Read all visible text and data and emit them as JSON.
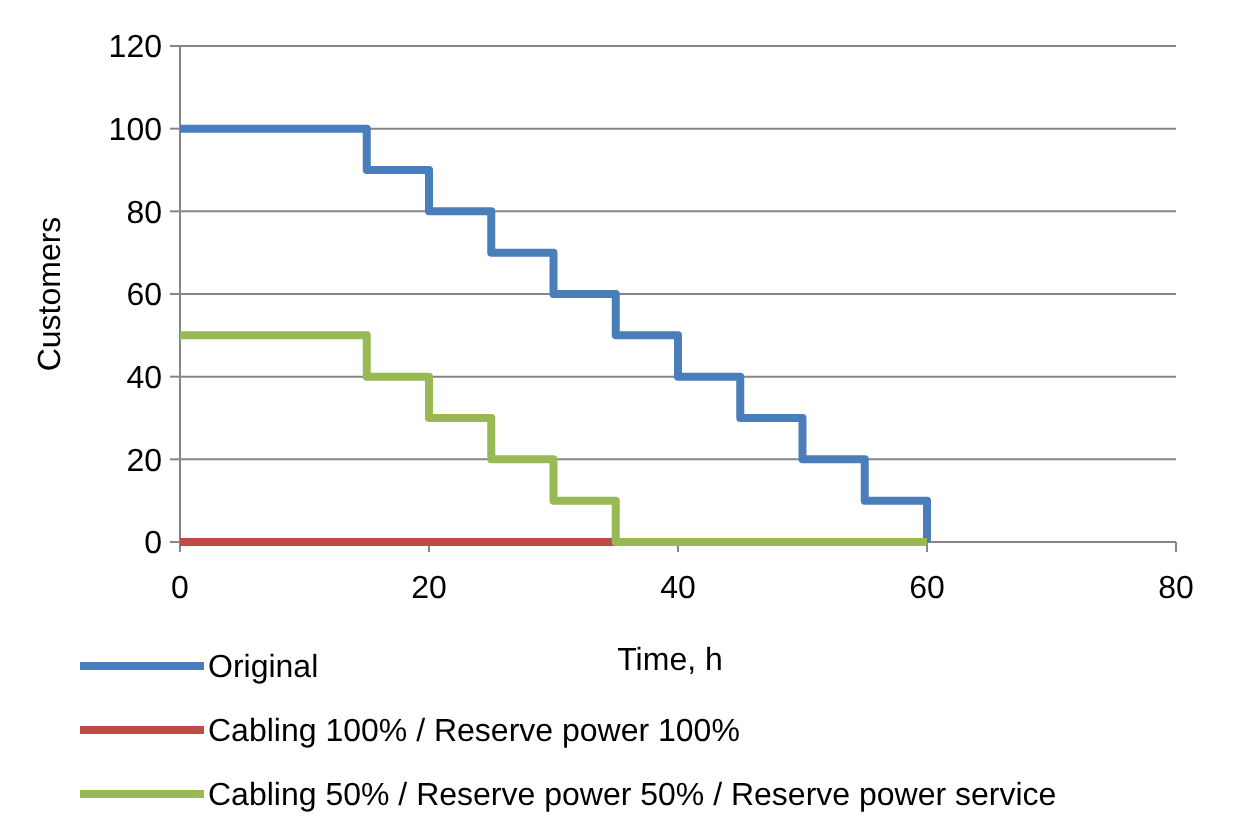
{
  "chart_data": {
    "type": "step",
    "xlabel": "Time, h",
    "ylabel": "Customers",
    "xlim": [
      0,
      80
    ],
    "xticks": [
      0,
      20,
      40,
      60,
      80
    ],
    "ylim": [
      0,
      120
    ],
    "yticks": [
      0,
      20,
      40,
      60,
      80,
      100,
      120
    ],
    "grid": "y",
    "legend": "bottom",
    "marker": "none",
    "line_style": "solid",
    "series": [
      {
        "name": "Original",
        "color": "#4a7ebb",
        "x": [
          0,
          15,
          20,
          25,
          30,
          35,
          40,
          45,
          50,
          55,
          60
        ],
        "values": [
          100,
          90,
          80,
          70,
          60,
          50,
          40,
          30,
          20,
          10,
          0
        ]
      },
      {
        "name": "Cabling 100% / Reserve power 100%",
        "color": "#be4b48",
        "x": [
          0,
          60
        ],
        "values": [
          0,
          0
        ]
      },
      {
        "name": "Cabling 50% / Reserve power 50% / Reserve power service",
        "color": "#98b954",
        "x": [
          0,
          15,
          20,
          25,
          30,
          35,
          60
        ],
        "values": [
          50,
          40,
          30,
          20,
          10,
          0,
          0
        ]
      }
    ]
  }
}
